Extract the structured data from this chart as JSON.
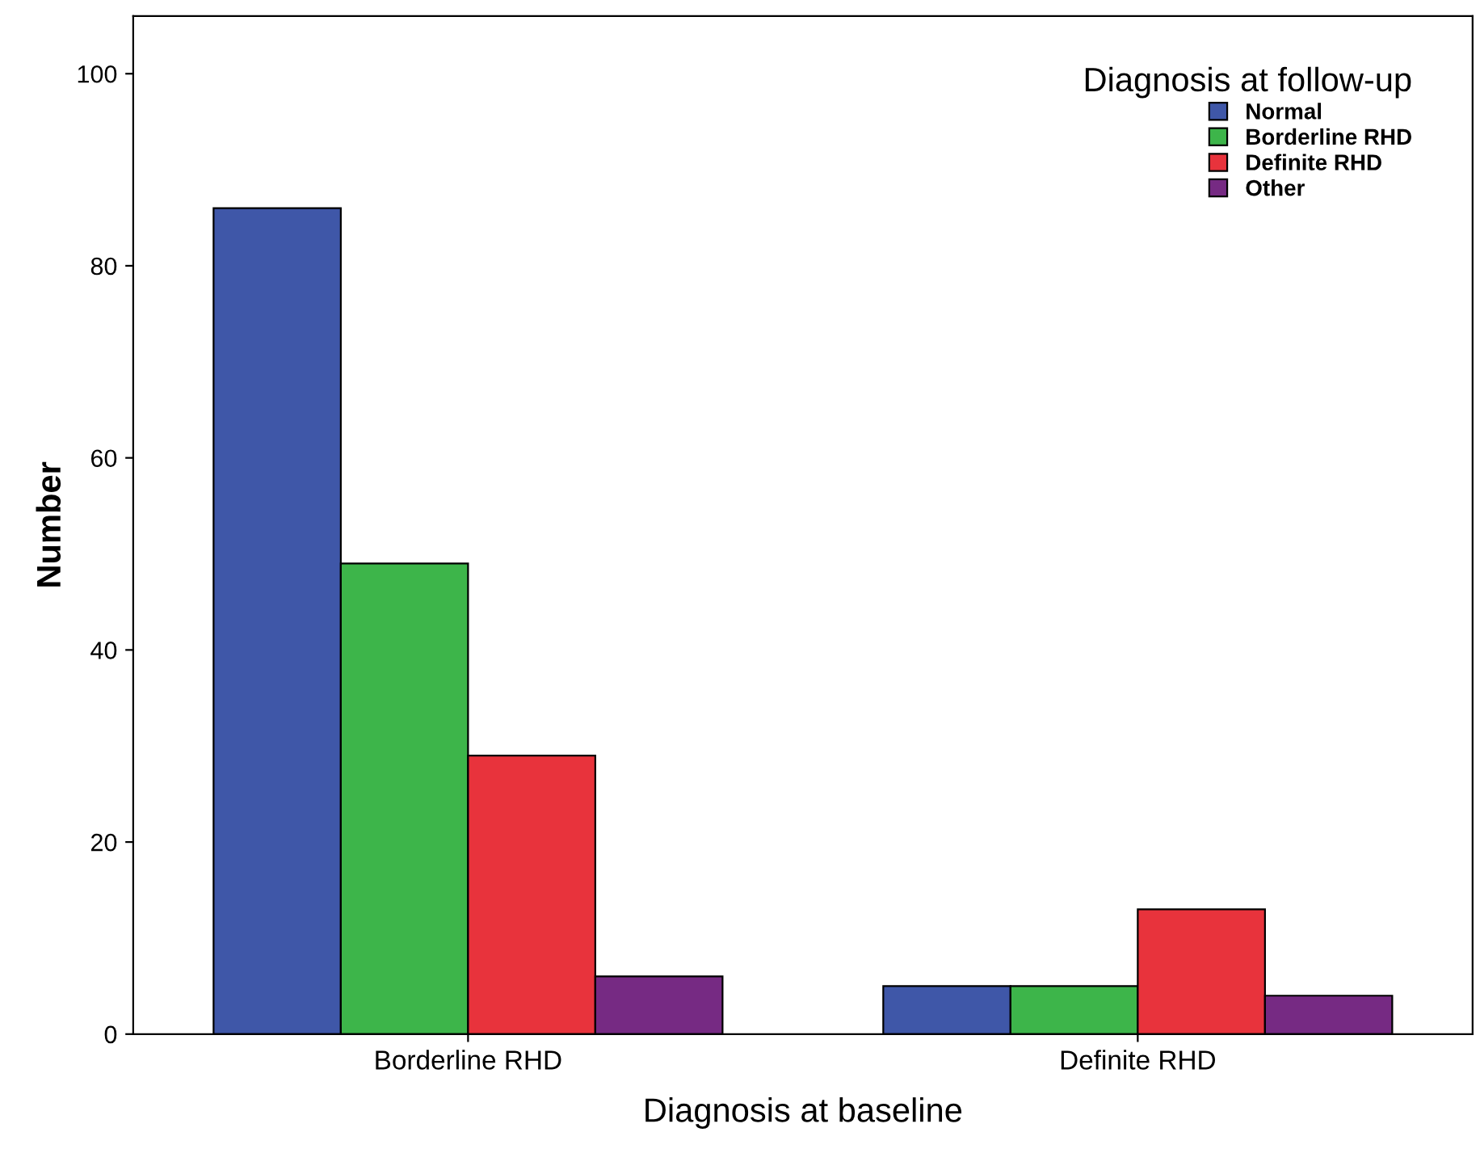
{
  "chart_data": {
    "type": "bar",
    "xlabel": "Diagnosis at baseline",
    "ylabel": "Number",
    "legend_title": "Diagnosis at follow-up",
    "categories": [
      "Borderline RHD",
      "Definite RHD"
    ],
    "series": [
      {
        "name": "Normal",
        "color": "#3f57a8",
        "values": [
          86,
          5
        ]
      },
      {
        "name": "Borderline RHD",
        "color": "#3db54a",
        "values": [
          49,
          5
        ]
      },
      {
        "name": "Definite RHD",
        "color": "#e8333c",
        "values": [
          29,
          13
        ]
      },
      {
        "name": "Other",
        "color": "#762a83",
        "values": [
          6,
          4
        ]
      }
    ],
    "ylim": [
      0,
      106
    ],
    "yticks": [
      0,
      20,
      40,
      60,
      80,
      100
    ],
    "grid": false,
    "legend": "top right"
  }
}
